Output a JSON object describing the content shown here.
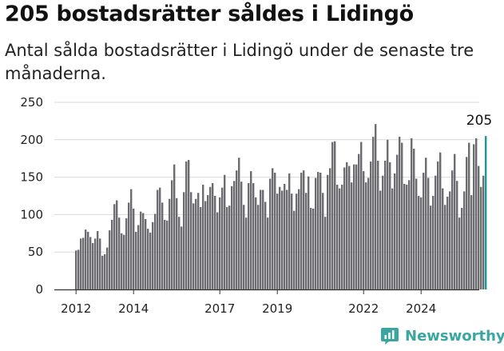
{
  "title": "205 bostadsrätter såldes i Lidingö",
  "subtitle": "Antal sålda bostadsrätter i Lidingö under de senaste tre månaderna.",
  "brand": {
    "name": "Newsworthy"
  },
  "colors": {
    "bar": "#6b6b70",
    "highlight": "#1a9aa0",
    "grid": "#d9d9d9",
    "axis": "#333333",
    "brand": "#3aa6a1"
  },
  "chart_data": {
    "type": "bar",
    "title": "205 bostadsrätter såldes i Lidingö",
    "xlabel": "",
    "ylabel": "",
    "ylim": [
      0,
      250
    ],
    "yticks": [
      0,
      50,
      100,
      150,
      200,
      250
    ],
    "xticks": [
      {
        "label": "2012",
        "index": 0
      },
      {
        "label": "2014",
        "index": 24
      },
      {
        "label": "2017",
        "index": 60
      },
      {
        "label": "2019",
        "index": 84
      },
      {
        "label": "2022",
        "index": 120
      },
      {
        "label": "2024",
        "index": 144
      }
    ],
    "highlight_label": "205",
    "values": [
      52,
      53,
      68,
      69,
      80,
      77,
      70,
      62,
      68,
      78,
      68,
      45,
      47,
      56,
      79,
      93,
      114,
      119,
      96,
      75,
      73,
      95,
      116,
      134,
      108,
      77,
      86,
      104,
      102,
      94,
      81,
      76,
      90,
      101,
      133,
      136,
      116,
      93,
      92,
      121,
      146,
      167,
      122,
      97,
      84,
      130,
      171,
      173,
      130,
      115,
      121,
      129,
      110,
      140,
      118,
      126,
      137,
      142,
      125,
      103,
      123,
      136,
      153,
      110,
      112,
      138,
      145,
      159,
      176,
      144,
      113,
      96,
      142,
      158,
      142,
      123,
      113,
      133,
      133,
      117,
      96,
      148,
      162,
      156,
      128,
      137,
      132,
      141,
      133,
      155,
      128,
      105,
      128,
      134,
      156,
      159,
      129,
      151,
      109,
      108,
      149,
      157,
      156,
      129,
      97,
      153,
      162,
      197,
      198,
      140,
      135,
      140,
      163,
      170,
      165,
      143,
      167,
      167,
      181,
      197,
      158,
      143,
      149,
      171,
      204,
      221,
      172,
      132,
      152,
      172,
      200,
      170,
      135,
      155,
      180,
      204,
      196,
      141,
      140,
      146,
      202,
      188,
      148,
      125,
      123,
      156,
      176,
      149,
      112,
      125,
      152,
      171,
      183,
      135,
      113,
      124,
      131,
      159,
      181,
      145,
      96,
      109,
      131,
      177,
      196,
      126,
      194,
      202,
      165,
      137,
      152,
      205
    ]
  }
}
